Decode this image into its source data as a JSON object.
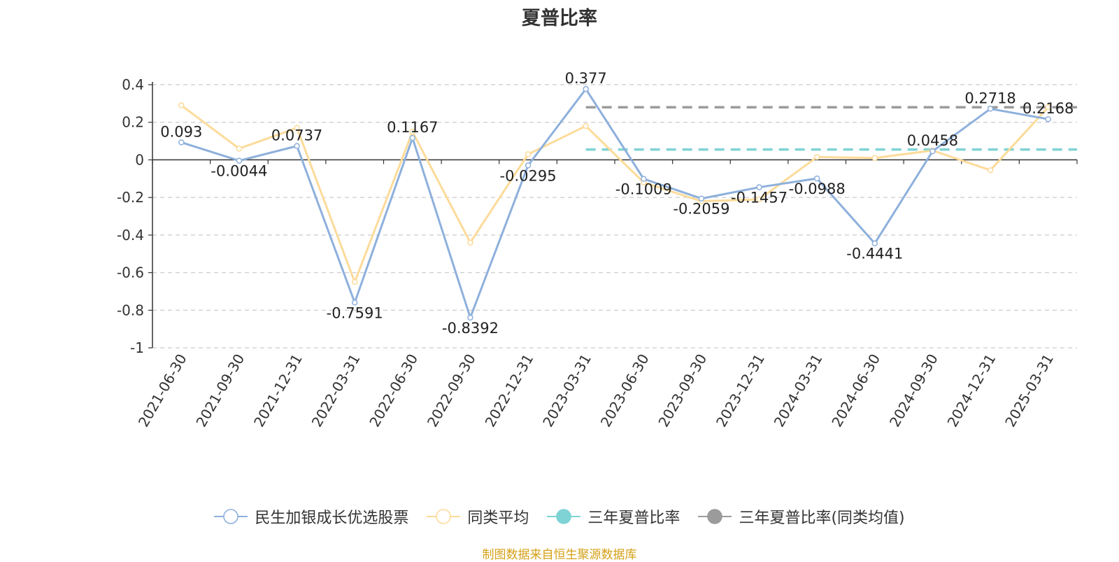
{
  "chart_data": {
    "type": "line",
    "title": "夏普比率",
    "categories": [
      "2021-06-30",
      "2021-09-30",
      "2021-12-31",
      "2022-03-31",
      "2022-06-30",
      "2022-09-30",
      "2022-12-31",
      "2023-03-31",
      "2023-06-30",
      "2023-09-30",
      "2023-12-31",
      "2024-03-31",
      "2024-06-30",
      "2024-09-30",
      "2024-12-31",
      "2025-03-31"
    ],
    "y_ticks": [
      "0.4",
      "0.2",
      "0",
      "-0.2",
      "-0.4",
      "-0.6",
      "-0.8",
      "-1"
    ],
    "ylim": [
      -1,
      0.4
    ],
    "grid": true,
    "legend_position": "bottom",
    "series": [
      {
        "name": "民生加银成长优选股票",
        "color": "#8eb0dc",
        "values": [
          0.093,
          -0.0044,
          0.0737,
          -0.7591,
          0.1167,
          -0.8392,
          -0.0295,
          0.377,
          -0.1009,
          -0.2059,
          -0.1457,
          -0.0988,
          -0.4441,
          0.0458,
          0.2718,
          0.2168
        ],
        "labels": [
          "0.093",
          "-0.0044",
          "0.0737",
          "-0.7591",
          "0.1167",
          "-0.8392",
          "-0.0295",
          "0.377",
          "-0.1009",
          "-0.2059",
          "-0.1457",
          "-0.0988",
          "-0.4441",
          "0.0458",
          "0.2718",
          "0.2168"
        ]
      },
      {
        "name": "同类平均",
        "color": "#fcdb9a",
        "values": [
          0.29,
          0.06,
          0.17,
          -0.65,
          0.15,
          -0.44,
          0.03,
          0.18,
          -0.12,
          -0.22,
          -0.21,
          0.015,
          0.01,
          0.05,
          -0.055,
          0.28
        ]
      },
      {
        "name": "三年夏普比率",
        "color": "#7fd3d4",
        "value": 0.055,
        "start_category": "2023-03-31"
      },
      {
        "name": "三年夏普比率(同类均值)",
        "color": "#9b9b9b",
        "value": 0.28,
        "start_category": "2023-03-31"
      }
    ]
  },
  "source_note": "制图数据来自恒生聚源数据库",
  "source_note_color": "#d4a017"
}
